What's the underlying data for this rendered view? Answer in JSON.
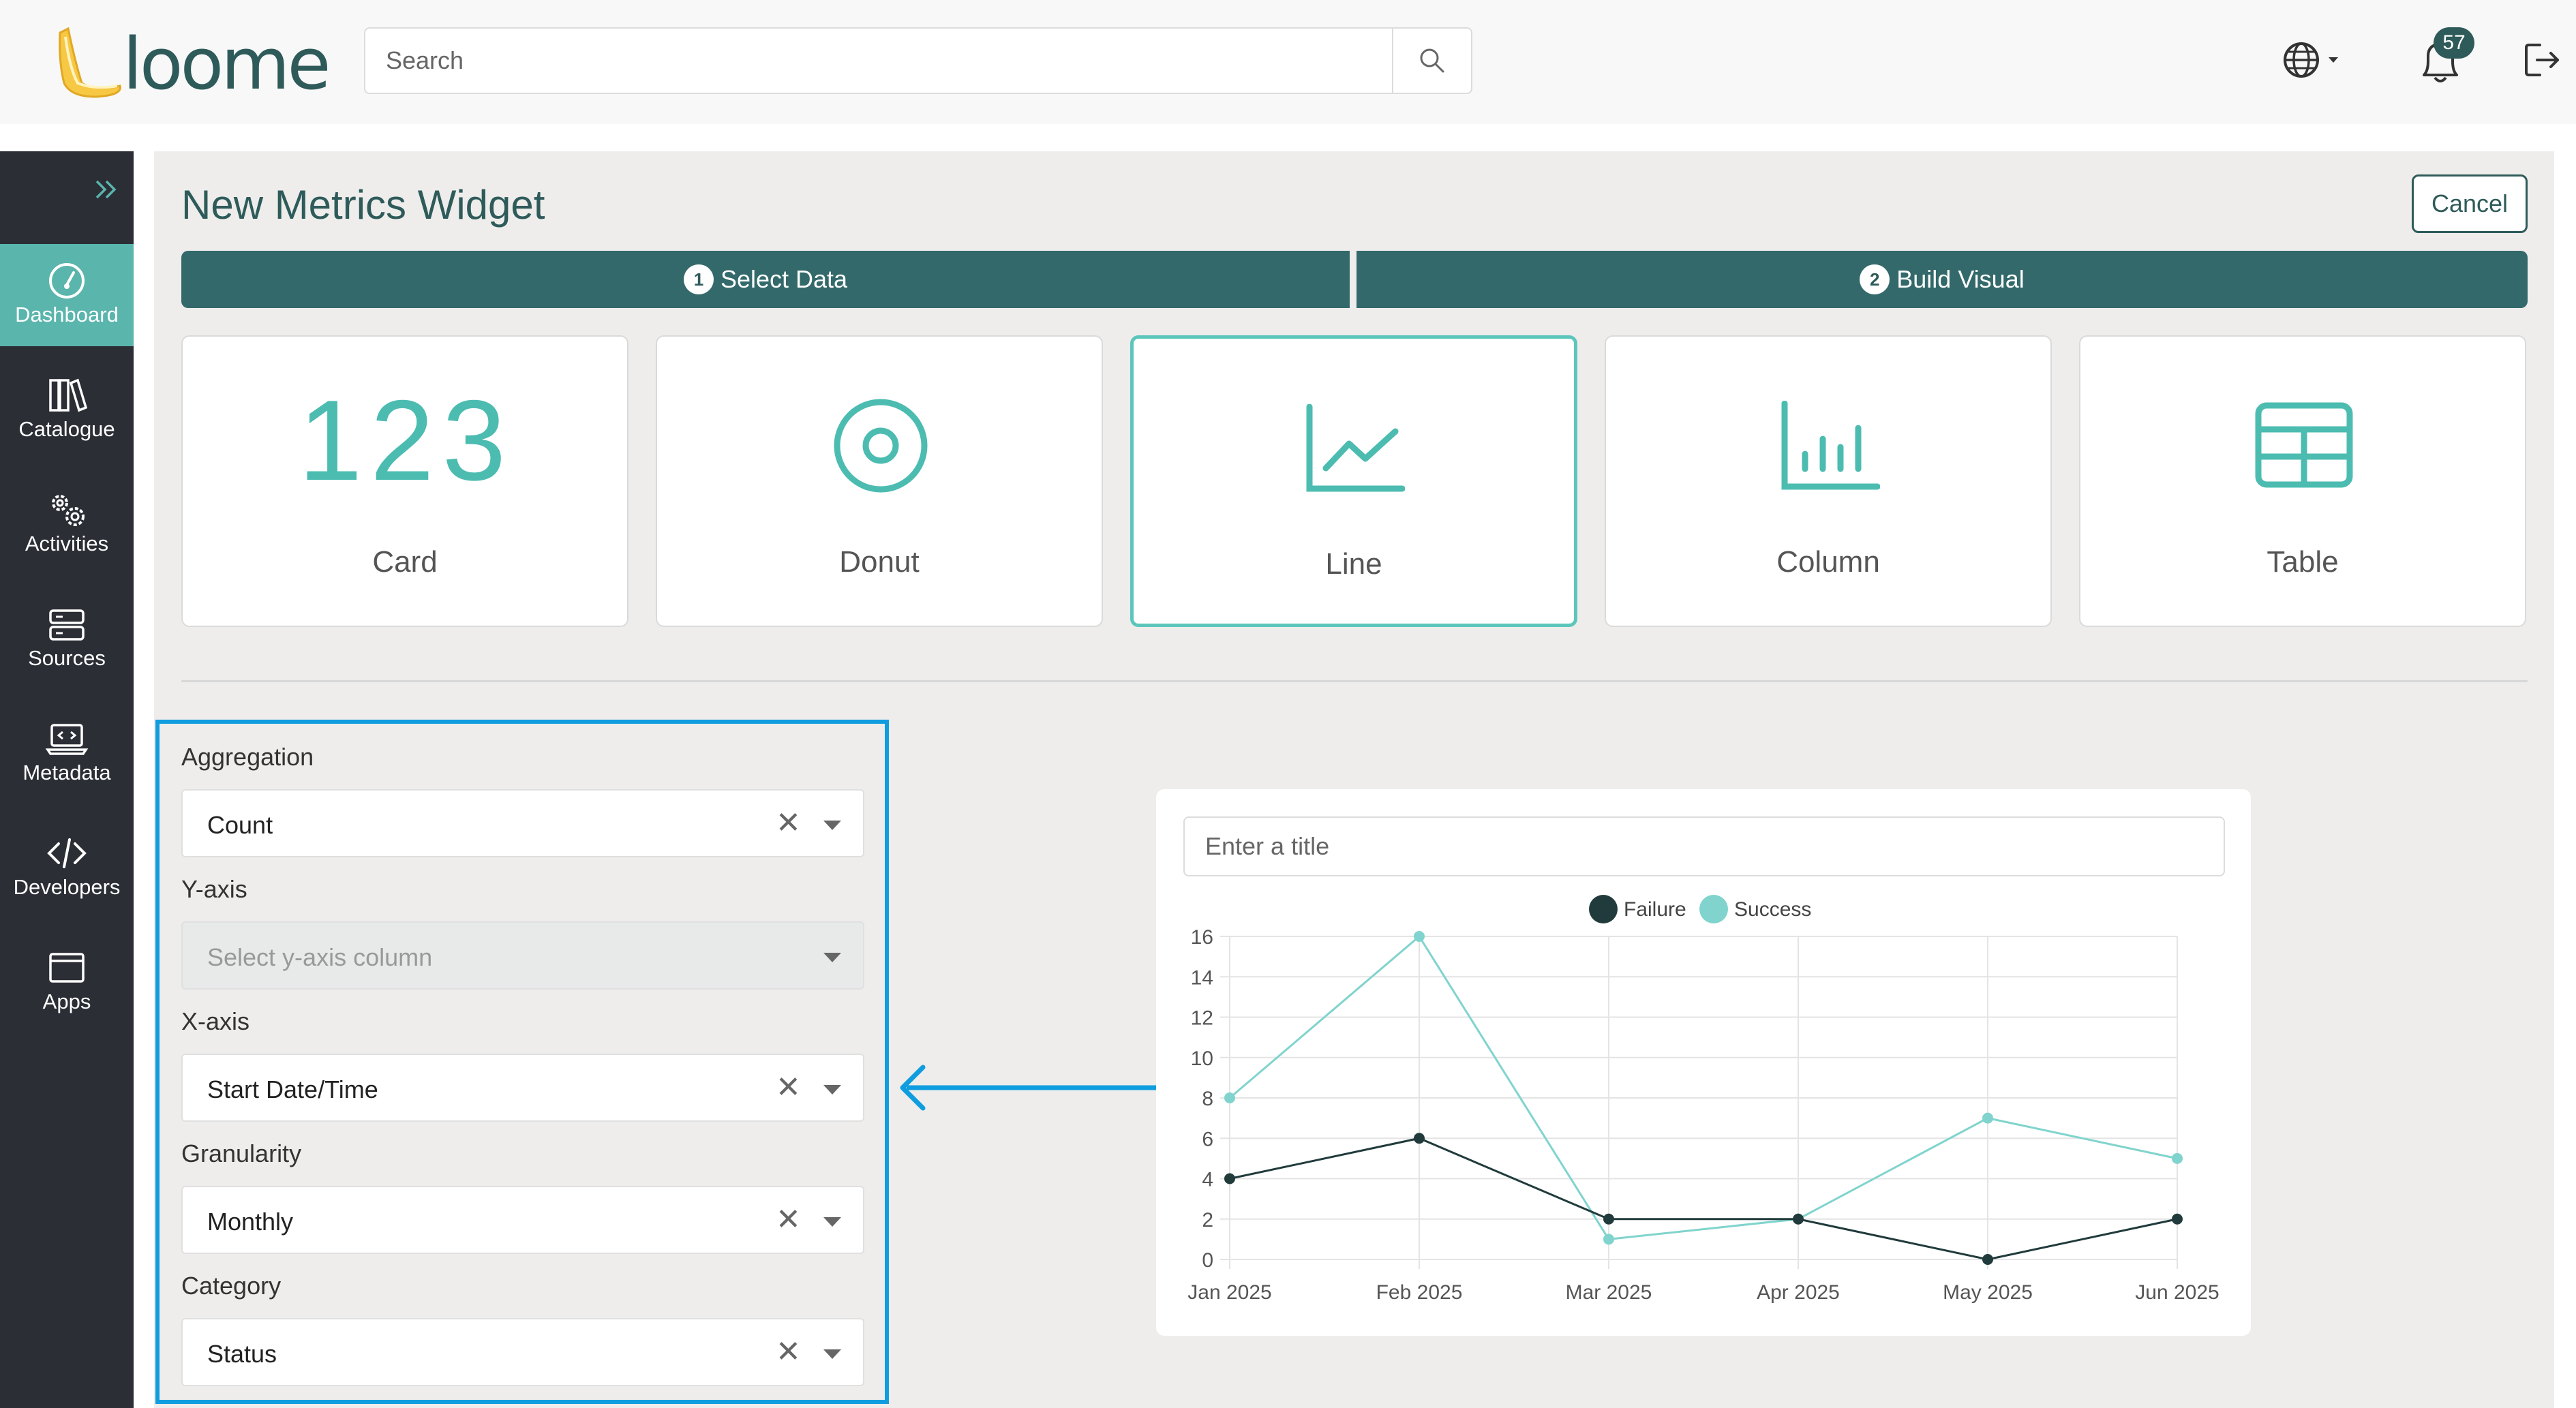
{
  "app": {
    "logo_text": "loome"
  },
  "topbar": {
    "search_placeholder": "Search",
    "notification_count": "57"
  },
  "sidebar": {
    "items": [
      {
        "label": "Dashboard",
        "icon": "dashboard-icon",
        "active": true
      },
      {
        "label": "Catalogue",
        "icon": "books-icon"
      },
      {
        "label": "Activities",
        "icon": "gears-icon"
      },
      {
        "label": "Sources",
        "icon": "server-icon"
      },
      {
        "label": "Metadata",
        "icon": "laptop-code-icon"
      },
      {
        "label": "Developers",
        "icon": "code-icon"
      },
      {
        "label": "Apps",
        "icon": "window-icon"
      }
    ]
  },
  "page": {
    "title": "New Metrics Widget",
    "cancel_label": "Cancel",
    "steps": [
      {
        "number": "1",
        "label": "Select Data"
      },
      {
        "number": "2",
        "label": "Build Visual"
      }
    ],
    "visual_types": [
      {
        "label": "Card",
        "icon_text": "123"
      },
      {
        "label": "Donut"
      },
      {
        "label": "Line",
        "selected": true
      },
      {
        "label": "Column"
      },
      {
        "label": "Table"
      }
    ]
  },
  "form": {
    "aggregation": {
      "label": "Aggregation",
      "value": "Count"
    },
    "y_axis": {
      "label": "Y-axis",
      "placeholder": "Select y-axis column"
    },
    "x_axis": {
      "label": "X-axis",
      "value": "Start Date/Time"
    },
    "granularity": {
      "label": "Granularity",
      "value": "Monthly"
    },
    "category": {
      "label": "Category",
      "value": "Status"
    }
  },
  "preview": {
    "title_placeholder": "Enter a title"
  },
  "colors": {
    "accent": "#5ab5ac",
    "primary_dark": "#2e5b5a",
    "highlight_frame": "#0f9ddf",
    "failure": "#213b3c",
    "success": "#80d4cd"
  },
  "chart_data": {
    "type": "line",
    "categories": [
      "Jan 2025",
      "Feb 2025",
      "Mar 2025",
      "Apr 2025",
      "May 2025",
      "Jun 2025"
    ],
    "series": [
      {
        "name": "Failure",
        "values": [
          4,
          6,
          2,
          2,
          0,
          2
        ],
        "color": "#213b3c"
      },
      {
        "name": "Success",
        "values": [
          8,
          16,
          1,
          2,
          7,
          5
        ],
        "color": "#80d4cd"
      }
    ],
    "y_ticks": [
      0,
      2,
      4,
      6,
      8,
      10,
      12,
      14,
      16
    ],
    "ylim": [
      0,
      16
    ],
    "grid": true,
    "legend_position": "top"
  }
}
